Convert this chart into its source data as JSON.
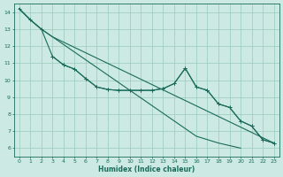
{
  "xlabel": "Humidex (Indice chaleur)",
  "bg_color": "#cce9e4",
  "grid_color": "#99ccbb",
  "line_color": "#1a6b5a",
  "xlim": [
    -0.5,
    23.5
  ],
  "ylim": [
    5.5,
    14.5
  ],
  "xticks": [
    0,
    1,
    2,
    3,
    4,
    5,
    6,
    7,
    8,
    9,
    10,
    11,
    12,
    13,
    14,
    15,
    16,
    17,
    18,
    19,
    20,
    21,
    22,
    23
  ],
  "yticks": [
    6,
    7,
    8,
    9,
    10,
    11,
    12,
    13,
    14
  ],
  "line1": {
    "x": [
      0,
      1,
      2,
      3,
      4,
      5,
      6,
      7,
      8,
      9,
      10,
      11,
      12,
      13,
      14,
      15,
      16,
      17,
      18,
      19,
      20,
      21,
      22,
      23
    ],
    "y": [
      14.2,
      13.55,
      13.0,
      12.55,
      12.1,
      11.65,
      11.2,
      10.75,
      10.3,
      9.85,
      9.4,
      8.95,
      8.5,
      8.05,
      7.6,
      7.15,
      6.7,
      6.5,
      6.3,
      6.15,
      6.0,
      null,
      null,
      null
    ]
  },
  "line2": {
    "x": [
      0,
      1,
      2,
      3,
      4,
      5,
      6,
      7,
      8,
      9,
      10,
      11,
      12,
      13,
      14,
      15,
      16,
      17,
      18,
      19,
      20,
      21,
      22,
      23
    ],
    "y": [
      14.2,
      13.55,
      13.0,
      11.4,
      10.9,
      10.65,
      10.1,
      9.6,
      9.45,
      9.4,
      9.4,
      9.4,
      9.4,
      9.5,
      9.8,
      10.7,
      9.6,
      9.4,
      8.6,
      8.4,
      7.6,
      7.3,
      6.5,
      6.3
    ]
  },
  "line3": {
    "x": [
      3,
      4,
      5,
      6,
      7,
      8,
      9,
      10,
      11,
      12,
      13,
      14,
      15,
      16,
      17,
      18,
      19,
      20,
      21,
      22,
      23
    ],
    "y": [
      11.4,
      10.9,
      10.65,
      10.1,
      9.6,
      9.45,
      9.4,
      9.4,
      9.4,
      9.4,
      9.5,
      9.8,
      10.7,
      9.6,
      9.4,
      8.6,
      8.4,
      7.6,
      7.3,
      6.5,
      6.3
    ]
  },
  "line4": {
    "x": [
      0,
      1,
      2,
      3,
      23
    ],
    "y": [
      14.2,
      13.55,
      13.0,
      12.55,
      6.3
    ]
  }
}
